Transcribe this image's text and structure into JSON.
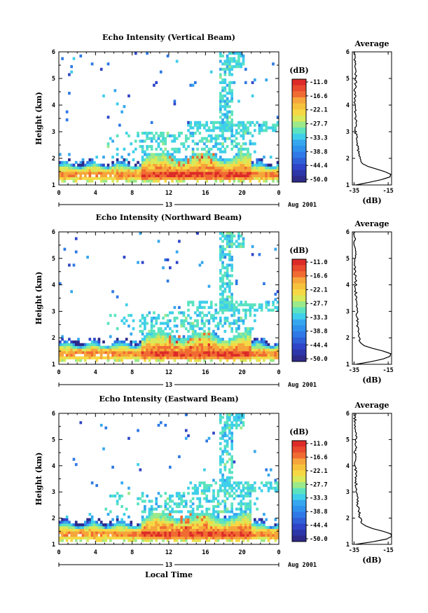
{
  "chart_data": [
    {
      "type": "heatmap",
      "title": "Echo Intensity (Vertical Beam)",
      "ylabel": "Height (km)",
      "xticks": [
        "0",
        "4",
        "8",
        "12",
        "16",
        "20",
        "0"
      ],
      "yticks": [
        "1",
        "2",
        "3",
        "4",
        "5",
        "6"
      ],
      "ylim": [
        1,
        6
      ],
      "xlim": [
        0,
        24
      ],
      "day_label": "13",
      "date_label": "Aug 2001",
      "colorbar": {
        "unit": "(dB)",
        "ticks": [
          "-11.0",
          "-16.6",
          "-22.1",
          "-27.7",
          "-33.3",
          "-38.8",
          "-44.4",
          "-50.0"
        ],
        "range": [
          -50.0,
          -11.0
        ]
      },
      "profile": {
        "title": "Average",
        "xlabel": "(dB)",
        "xticks": [
          "-35",
          "-15"
        ],
        "xlim": [
          -36,
          -13
        ],
        "yticks": [
          "1",
          "2",
          "3",
          "4",
          "5",
          "6"
        ],
        "heights": [
          1.0,
          1.1,
          1.2,
          1.3,
          1.4,
          1.5,
          1.6,
          1.7,
          1.8,
          2.0,
          2.2,
          2.5,
          3.0,
          3.5,
          4.0,
          4.5,
          5.0,
          5.5,
          6.0
        ],
        "values": [
          -34,
          -26,
          -19,
          -14,
          -13.5,
          -17,
          -22,
          -27,
          -30,
          -31.5,
          -32,
          -33,
          -34,
          -34,
          -34.5,
          -34.5,
          -34,
          -34.5,
          -34.5
        ]
      }
    },
    {
      "type": "heatmap",
      "title": "Echo Intensity (Northward Beam)",
      "ylabel": "Height (km)",
      "xticks": [
        "0",
        "4",
        "8",
        "12",
        "16",
        "20",
        "0"
      ],
      "yticks": [
        "1",
        "2",
        "3",
        "4",
        "5",
        "6"
      ],
      "ylim": [
        1,
        6
      ],
      "xlim": [
        0,
        24
      ],
      "day_label": "13",
      "date_label": "Aug 2001",
      "colorbar": {
        "unit": "(dB)",
        "ticks": [
          "-11.0",
          "-16.6",
          "-22.1",
          "-27.7",
          "-33.3",
          "-38.8",
          "-44.4",
          "-50.0"
        ],
        "range": [
          -50.0,
          -11.0
        ]
      },
      "profile": {
        "title": "Average",
        "xlabel": "(dB)",
        "xticks": [
          "-35",
          "-15"
        ],
        "xlim": [
          -36,
          -13
        ],
        "yticks": [
          "1",
          "2",
          "3",
          "4",
          "5",
          "6"
        ],
        "heights": [
          1.0,
          1.1,
          1.2,
          1.3,
          1.4,
          1.5,
          1.6,
          1.7,
          1.8,
          2.0,
          2.2,
          2.5,
          3.0,
          3.5,
          4.0,
          4.5,
          5.0,
          5.5,
          6.0
        ],
        "values": [
          -34,
          -25,
          -18,
          -14,
          -13.5,
          -18,
          -24,
          -29,
          -31,
          -32,
          -32.5,
          -33,
          -33.5,
          -34,
          -34,
          -34.5,
          -34,
          -34.5,
          -34.5
        ]
      }
    },
    {
      "type": "heatmap",
      "title": "Echo Intensity (Eastward Beam)",
      "ylabel": "Height (km)",
      "xlabel": "Local Time",
      "xticks": [
        "0",
        "4",
        "8",
        "12",
        "16",
        "20",
        "0"
      ],
      "yticks": [
        "1",
        "2",
        "3",
        "4",
        "5",
        "6"
      ],
      "ylim": [
        1,
        6
      ],
      "xlim": [
        0,
        24
      ],
      "day_label": "13",
      "date_label": "Aug 2001",
      "colorbar": {
        "unit": "(dB)",
        "ticks": [
          "-11.0",
          "-16.6",
          "-22.1",
          "-27.7",
          "-33.3",
          "-38.8",
          "-44.4",
          "-50.0"
        ],
        "range": [
          -50.0,
          -11.0
        ]
      },
      "profile": {
        "title": "Average",
        "xlabel": "(dB)",
        "xticks": [
          "-35",
          "-15"
        ],
        "xlim": [
          -36,
          -13
        ],
        "yticks": [
          "1",
          "2",
          "3",
          "4",
          "5",
          "6"
        ],
        "heights": [
          1.0,
          1.1,
          1.2,
          1.3,
          1.4,
          1.5,
          1.6,
          1.7,
          1.8,
          2.0,
          2.2,
          2.5,
          3.0,
          3.5,
          4.0,
          4.5,
          5.0,
          5.5,
          6.0
        ],
        "values": [
          -34,
          -24,
          -16,
          -13,
          -13.5,
          -18,
          -24,
          -28,
          -30.5,
          -31.5,
          -32,
          -33,
          -33.5,
          -34,
          -34,
          -34.5,
          -33.5,
          -34.5,
          -34.5
        ]
      }
    }
  ]
}
